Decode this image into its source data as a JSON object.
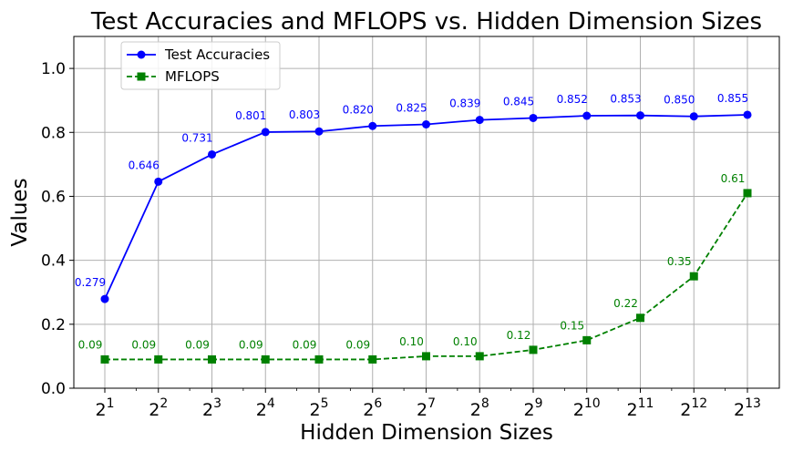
{
  "chart_data": {
    "type": "line",
    "title": "Test Accuracies and MFLOPS vs. Hidden Dimension Sizes",
    "xlabel": "Hidden Dimension Sizes",
    "ylabel": "Values",
    "x_scale": "log2",
    "x": [
      2,
      4,
      8,
      16,
      32,
      64,
      128,
      256,
      512,
      1024,
      2048,
      4096,
      8192
    ],
    "x_tick_base": "2",
    "x_tick_exponents": [
      "1",
      "2",
      "3",
      "4",
      "5",
      "6",
      "7",
      "8",
      "9",
      "10",
      "11",
      "12",
      "13"
    ],
    "ylim": [
      0,
      1.1
    ],
    "y_ticks": [
      "0.0",
      "0.2",
      "0.4",
      "0.6",
      "0.8",
      "1.0"
    ],
    "grid": true,
    "legend_position": "upper-left",
    "series": [
      {
        "name": "Test Accuracies",
        "color": "#0000ff",
        "marker": "circle",
        "linestyle": "solid",
        "values": [
          0.279,
          0.646,
          0.731,
          0.801,
          0.803,
          0.82,
          0.825,
          0.839,
          0.845,
          0.852,
          0.853,
          0.85,
          0.855
        ],
        "labels": [
          "0.279",
          "0.646",
          "0.731",
          "0.801",
          "0.803",
          "0.820",
          "0.825",
          "0.839",
          "0.845",
          "0.852",
          "0.853",
          "0.850",
          "0.855"
        ]
      },
      {
        "name": "MFLOPS",
        "color": "#008000",
        "marker": "square",
        "linestyle": "dashed",
        "values": [
          0.09,
          0.09,
          0.09,
          0.09,
          0.09,
          0.09,
          0.1,
          0.1,
          0.12,
          0.15,
          0.22,
          0.35,
          0.61
        ],
        "labels": [
          "0.09",
          "0.09",
          "0.09",
          "0.09",
          "0.09",
          "0.09",
          "0.10",
          "0.10",
          "0.12",
          "0.15",
          "0.22",
          "0.35",
          "0.61"
        ]
      }
    ]
  }
}
